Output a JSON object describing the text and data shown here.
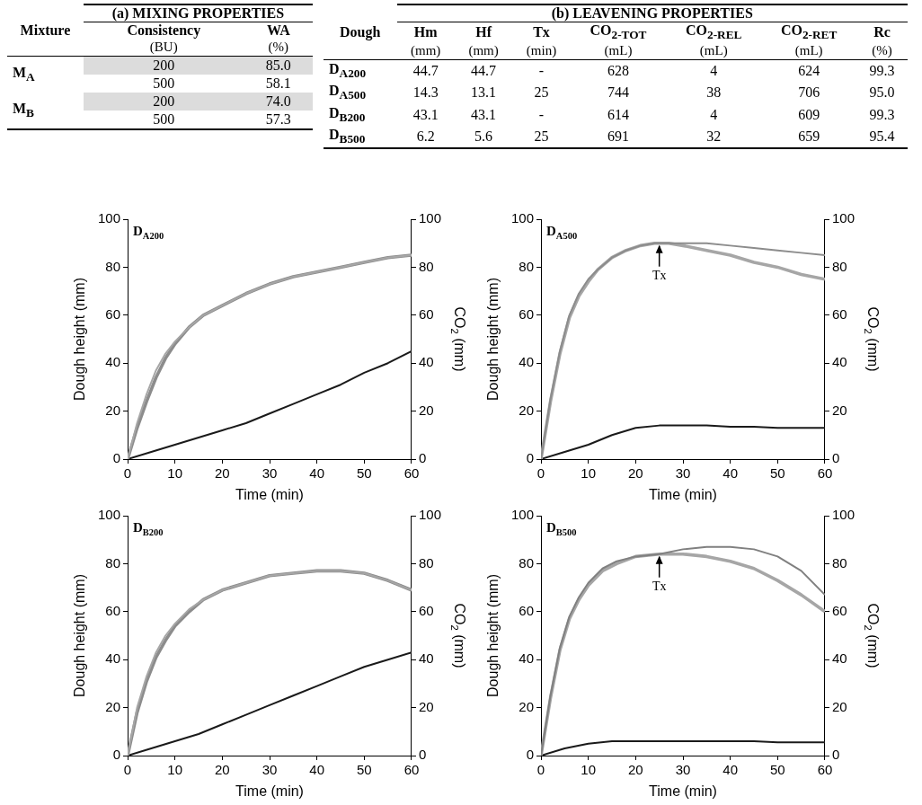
{
  "chart_data": [
    {
      "type": "other",
      "title": "(a) MIXING PROPERTIES",
      "ylabel": "Mixture",
      "categories": [
        "Consistency\n(BU)",
        "WA\n(%)"
      ],
      "y_categories": [
        "M$_{A}$",
        null,
        "M$_{B}$",
        null
      ],
      "cell_labels": [
        [
          "200",
          "85.0"
        ],
        [
          "500",
          "58.1"
        ],
        [
          "200",
          "74.0"
        ],
        [
          "500",
          "57.3"
        ]
      ],
      "colors": [
        "#dcdcdc",
        "#ffffff",
        "#dcdcdc",
        "#ffffff"
      ]
    },
    {
      "type": "other",
      "title": "(b) LEAVENING PROPERTIES",
      "ylabel": "Dough",
      "categories": [
        "Hm\n(mm)",
        "Hf\n(mm)",
        "Tx\n(min)",
        "CO$_{2-TOT}$\n(mL)",
        "CO$_{2-REL}$\n(mL)",
        "CO$_{2-RET}$\n(mL)",
        "Rc\n(%)"
      ],
      "y_categories": [
        "D$_{A200}$",
        "D$_{A500}$",
        "D$_{B200}$",
        "D$_{B500}$"
      ],
      "cell_labels": [
        [
          "44.7",
          "44.7",
          "-",
          "628",
          "4",
          "624",
          "99.3"
        ],
        [
          "14.3",
          "13.1",
          "25",
          "744",
          "38",
          "706",
          "95.0"
        ],
        [
          "43.1",
          "43.1",
          "-",
          "614",
          "4",
          "609",
          "99.3"
        ],
        [
          "6.2",
          "5.6",
          "25",
          "691",
          "32",
          "659",
          "95.4"
        ]
      ]
    },
    {
      "type": "line",
      "xlabel": "Time (min)",
      "ylabel": "Dough height (mm)",
      "y2label": "CO$_{2}$ (mm)",
      "xlim": [
        0,
        60
      ],
      "xticks": [
        0,
        10,
        20,
        30,
        40,
        50,
        60
      ],
      "ylim": [
        0,
        100
      ],
      "yticks": [
        0,
        20,
        40,
        60,
        80,
        100
      ],
      "y2lim": [
        0,
        100
      ],
      "y2ticks": [
        0,
        20,
        40,
        60,
        80,
        100
      ],
      "annotations": [
        "D$_{A200}$"
      ],
      "series": [
        {
          "color": "#a6a6a6",
          "x": [
            0,
            2,
            4,
            6,
            8,
            10,
            13,
            16,
            20,
            25,
            30,
            35,
            40,
            45,
            50,
            55,
            60
          ],
          "values": [
            0,
            15,
            27,
            37,
            44,
            49,
            55,
            60,
            64,
            69,
            73,
            76,
            78,
            80,
            82,
            84,
            85
          ]
        },
        {
          "color": "#8c8c8c",
          "x": [
            0,
            2,
            4,
            6,
            8,
            10,
            13,
            16,
            20,
            25,
            30,
            35,
            40,
            45,
            50,
            55,
            60
          ],
          "values": [
            0,
            13,
            24,
            34,
            42,
            48,
            55,
            60,
            64,
            69,
            73,
            76,
            78,
            80,
            82,
            84,
            85
          ]
        },
        {
          "color": "#1a1a1a",
          "x": [
            0,
            5,
            10,
            15,
            20,
            25,
            30,
            35,
            40,
            45,
            50,
            55,
            60
          ],
          "values": [
            0,
            3,
            6,
            9,
            12,
            15,
            19,
            23,
            27,
            31,
            36,
            40,
            45
          ]
        }
      ]
    },
    {
      "type": "line",
      "xlabel": "Time (min)",
      "ylabel": "Dough height (mm)",
      "y2label": "CO$_{2}$ (mm)",
      "xlim": [
        0,
        60
      ],
      "xticks": [
        0,
        10,
        20,
        30,
        40,
        50,
        60
      ],
      "ylim": [
        0,
        100
      ],
      "yticks": [
        0,
        20,
        40,
        60,
        80,
        100
      ],
      "y2lim": [
        0,
        100
      ],
      "y2ticks": [
        0,
        20,
        40,
        60,
        80,
        100
      ],
      "annotations": [
        "D$_{A500}$",
        {
          "text": "Tx",
          "x": 25,
          "y": 90
        }
      ],
      "series": [
        {
          "color": "#8c8c8c",
          "x": [
            0,
            2,
            4,
            6,
            8,
            10,
            12,
            15,
            18,
            21,
            24,
            27,
            30,
            35,
            40,
            45,
            50,
            55,
            60
          ],
          "values": [
            0,
            25,
            45,
            60,
            69,
            75,
            79,
            84,
            87,
            89,
            90,
            90,
            90,
            90,
            89,
            88,
            87,
            86,
            85
          ]
        },
        {
          "color": "#a6a6a6",
          "x": [
            0,
            2,
            4,
            6,
            8,
            10,
            12,
            15,
            18,
            21,
            24,
            27,
            30,
            35,
            40,
            45,
            50,
            55,
            60
          ],
          "values": [
            0,
            24,
            44,
            59,
            68,
            74,
            79,
            84,
            87,
            89,
            90,
            90,
            89,
            87,
            85,
            82,
            80,
            77,
            75
          ]
        },
        {
          "color": "#1a1a1a",
          "x": [
            0,
            5,
            10,
            15,
            20,
            25,
            30,
            35,
            40,
            45,
            50,
            55,
            60
          ],
          "values": [
            0,
            3,
            6,
            10,
            13,
            14,
            14,
            14,
            13.5,
            13.5,
            13,
            13,
            13
          ]
        }
      ]
    },
    {
      "type": "line",
      "xlabel": "Time (min)",
      "ylabel": "Dough height (mm)",
      "y2label": "CO$_{2}$ (mm)",
      "xlim": [
        0,
        60
      ],
      "xticks": [
        0,
        10,
        20,
        30,
        40,
        50,
        60
      ],
      "ylim": [
        0,
        100
      ],
      "yticks": [
        0,
        20,
        40,
        60,
        80,
        100
      ],
      "y2lim": [
        0,
        100
      ],
      "y2ticks": [
        0,
        20,
        40,
        60,
        80,
        100
      ],
      "annotations": [
        "D$_{B200}$"
      ],
      "series": [
        {
          "color": "#a6a6a6",
          "x": [
            0,
            2,
            4,
            6,
            8,
            10,
            13,
            16,
            20,
            25,
            30,
            35,
            40,
            45,
            50,
            55,
            60
          ],
          "values": [
            0,
            20,
            33,
            43,
            50,
            55,
            61,
            65,
            69,
            72,
            75,
            76,
            77,
            77,
            76,
            73,
            69
          ]
        },
        {
          "color": "#8c8c8c",
          "x": [
            0,
            2,
            4,
            6,
            8,
            10,
            13,
            16,
            20,
            25,
            30,
            35,
            40,
            45,
            50,
            55,
            60
          ],
          "values": [
            0,
            18,
            31,
            41,
            48,
            54,
            60,
            65,
            69,
            72,
            75,
            76,
            77,
            77,
            76,
            73,
            69
          ]
        },
        {
          "color": "#1a1a1a",
          "x": [
            0,
            5,
            10,
            15,
            20,
            25,
            30,
            35,
            40,
            45,
            50,
            55,
            60
          ],
          "values": [
            0,
            3,
            6,
            9,
            13,
            17,
            21,
            25,
            29,
            33,
            37,
            40,
            43
          ]
        }
      ]
    },
    {
      "type": "line",
      "xlabel": "Time (min)",
      "ylabel": "Dough height (mm)",
      "y2label": "CO$_{2}$ (mm)",
      "xlim": [
        0,
        60
      ],
      "xticks": [
        0,
        10,
        20,
        30,
        40,
        50,
        60
      ],
      "ylim": [
        0,
        100
      ],
      "yticks": [
        0,
        20,
        40,
        60,
        80,
        100
      ],
      "y2lim": [
        0,
        100
      ],
      "y2ticks": [
        0,
        20,
        40,
        60,
        80,
        100
      ],
      "annotations": [
        "D$_{B500}$",
        {
          "text": "Tx",
          "x": 25,
          "y": 84
        }
      ],
      "series": [
        {
          "color": "#808080",
          "x": [
            0,
            2,
            4,
            6,
            8,
            10,
            13,
            16,
            20,
            25,
            30,
            35,
            40,
            45,
            50,
            55,
            60
          ],
          "values": [
            0,
            25,
            45,
            58,
            66,
            72,
            78,
            81,
            83,
            84,
            86,
            87,
            87,
            86,
            83,
            77,
            67
          ]
        },
        {
          "color": "#a6a6a6",
          "x": [
            0,
            2,
            4,
            6,
            8,
            10,
            13,
            16,
            20,
            25,
            30,
            35,
            40,
            45,
            50,
            55,
            60
          ],
          "values": [
            0,
            24,
            44,
            57,
            65,
            71,
            77,
            80,
            83,
            84,
            84,
            83,
            81,
            78,
            73,
            67,
            60
          ]
        },
        {
          "color": "#1a1a1a",
          "x": [
            0,
            5,
            10,
            15,
            20,
            30,
            40,
            45,
            50,
            55,
            60
          ],
          "values": [
            0,
            3,
            5,
            6,
            6,
            6,
            6,
            6,
            5.5,
            5.5,
            5.5
          ]
        }
      ]
    }
  ]
}
